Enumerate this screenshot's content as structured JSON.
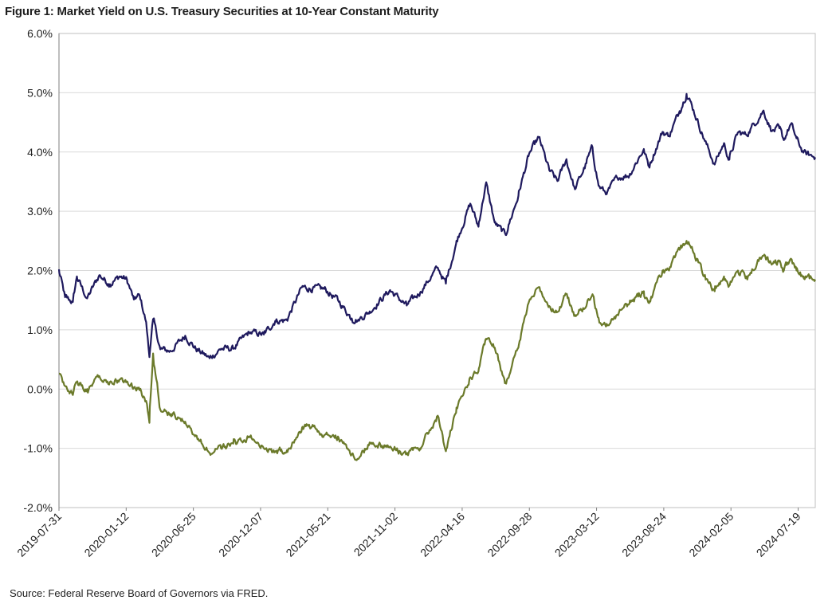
{
  "figure_title": "Figure 1: Market Yield on U.S. Treasury Securities at 10-Year Constant Maturity",
  "source": "Source: Federal Reserve Board of Governors via FRED.",
  "chart_data": {
    "type": "line",
    "title": "Figure 1: Market Yield on U.S. Treasury Securities at 10-Year Constant Maturity",
    "xlabel": "",
    "ylabel": "",
    "ylim": [
      -2.0,
      6.0
    ],
    "xlim": [
      "2019-07-31",
      "2024-08-30"
    ],
    "grid": true,
    "legend": "none",
    "y_ticks": [
      "-2.0%",
      "-1.0%",
      "0.0%",
      "1.0%",
      "2.0%",
      "3.0%",
      "4.0%",
      "5.0%",
      "6.0%"
    ],
    "y_tick_values": [
      -2,
      -1,
      0,
      1,
      2,
      3,
      4,
      5,
      6
    ],
    "x_ticks": [
      "2019-07-31",
      "2020-01-12",
      "2020-06-25",
      "2020-12-07",
      "2021-05-21",
      "2021-11-02",
      "2022-04-16",
      "2022-09-28",
      "2023-03-12",
      "2023-08-24",
      "2024-02-05",
      "2024-07-19"
    ],
    "series": [
      {
        "color": "#1f1a5e",
        "points": [
          [
            "2019-07-31",
            2.02
          ],
          [
            "2019-08-15",
            1.55
          ],
          [
            "2019-09-03",
            1.47
          ],
          [
            "2019-09-13",
            1.9
          ],
          [
            "2019-10-08",
            1.53
          ],
          [
            "2019-11-07",
            1.92
          ],
          [
            "2019-12-03",
            1.77
          ],
          [
            "2019-12-27",
            1.9
          ],
          [
            "2020-01-14",
            1.85
          ],
          [
            "2020-01-31",
            1.51
          ],
          [
            "2020-02-14",
            1.58
          ],
          [
            "2020-03-01",
            1.13
          ],
          [
            "2020-03-09",
            0.54
          ],
          [
            "2020-03-18",
            1.18
          ],
          [
            "2020-04-05",
            0.67
          ],
          [
            "2020-05-01",
            0.64
          ],
          [
            "2020-06-05",
            0.9
          ],
          [
            "2020-07-01",
            0.68
          ],
          [
            "2020-08-04",
            0.52
          ],
          [
            "2020-09-01",
            0.68
          ],
          [
            "2020-10-01",
            0.68
          ],
          [
            "2020-11-09",
            0.96
          ],
          [
            "2020-12-15",
            0.92
          ],
          [
            "2021-01-12",
            1.15
          ],
          [
            "2021-02-10",
            1.16
          ],
          [
            "2021-03-19",
            1.72
          ],
          [
            "2021-04-05",
            1.7
          ],
          [
            "2021-05-12",
            1.69
          ],
          [
            "2021-06-15",
            1.5
          ],
          [
            "2021-07-19",
            1.19
          ],
          [
            "2021-08-04",
            1.17
          ],
          [
            "2021-09-01",
            1.31
          ],
          [
            "2021-10-21",
            1.67
          ],
          [
            "2021-12-01",
            1.41
          ],
          [
            "2022-01-03",
            1.63
          ],
          [
            "2022-02-15",
            2.05
          ],
          [
            "2022-03-07",
            1.78
          ],
          [
            "2022-04-01",
            2.45
          ],
          [
            "2022-05-06",
            3.13
          ],
          [
            "2022-05-26",
            2.74
          ],
          [
            "2022-06-14",
            3.49
          ],
          [
            "2022-07-05",
            2.81
          ],
          [
            "2022-08-01",
            2.6
          ],
          [
            "2022-09-01",
            3.26
          ],
          [
            "2022-09-26",
            3.93
          ],
          [
            "2022-10-21",
            4.25
          ],
          [
            "2022-11-16",
            3.69
          ],
          [
            "2022-12-06",
            3.51
          ],
          [
            "2022-12-28",
            3.88
          ],
          [
            "2023-01-18",
            3.37
          ],
          [
            "2023-02-15",
            3.81
          ],
          [
            "2023-03-02",
            4.08
          ],
          [
            "2023-03-17",
            3.43
          ],
          [
            "2023-04-06",
            3.29
          ],
          [
            "2023-05-01",
            3.57
          ],
          [
            "2023-06-01",
            3.61
          ],
          [
            "2023-07-06",
            4.05
          ],
          [
            "2023-07-19",
            3.75
          ],
          [
            "2023-08-21",
            4.34
          ],
          [
            "2023-09-06",
            4.27
          ],
          [
            "2023-10-02",
            4.69
          ],
          [
            "2023-10-19",
            4.98
          ],
          [
            "2023-11-01",
            4.79
          ],
          [
            "2023-12-01",
            4.22
          ],
          [
            "2023-12-27",
            3.79
          ],
          [
            "2024-01-19",
            4.15
          ],
          [
            "2024-02-01",
            3.87
          ],
          [
            "2024-02-22",
            4.33
          ],
          [
            "2024-03-14",
            4.29
          ],
          [
            "2024-04-25",
            4.7
          ],
          [
            "2024-05-15",
            4.35
          ],
          [
            "2024-06-03",
            4.4
          ],
          [
            "2024-06-14",
            4.2
          ],
          [
            "2024-07-01",
            4.47
          ],
          [
            "2024-07-15",
            4.23
          ],
          [
            "2024-08-01",
            3.99
          ],
          [
            "2024-08-30",
            3.91
          ]
        ]
      },
      {
        "color": "#6b7a2a",
        "points": [
          [
            "2019-07-31",
            0.26
          ],
          [
            "2019-08-15",
            0.05
          ],
          [
            "2019-09-03",
            -0.1
          ],
          [
            "2019-09-13",
            0.12
          ],
          [
            "2019-10-08",
            0.0
          ],
          [
            "2019-11-07",
            0.22
          ],
          [
            "2019-12-03",
            0.12
          ],
          [
            "2019-12-27",
            0.16
          ],
          [
            "2020-01-14",
            0.13
          ],
          [
            "2020-01-31",
            0.03
          ],
          [
            "2020-02-14",
            -0.02
          ],
          [
            "2020-03-01",
            -0.2
          ],
          [
            "2020-03-09",
            -0.57
          ],
          [
            "2020-03-18",
            0.6
          ],
          [
            "2020-04-05",
            -0.35
          ],
          [
            "2020-05-01",
            -0.42
          ],
          [
            "2020-06-05",
            -0.55
          ],
          [
            "2020-07-01",
            -0.78
          ],
          [
            "2020-08-04",
            -1.08
          ],
          [
            "2020-09-01",
            -1.0
          ],
          [
            "2020-10-01",
            -0.92
          ],
          [
            "2020-11-09",
            -0.8
          ],
          [
            "2020-12-15",
            -1.0
          ],
          [
            "2021-01-12",
            -1.05
          ],
          [
            "2021-02-10",
            -1.03
          ],
          [
            "2021-03-19",
            -0.65
          ],
          [
            "2021-04-05",
            -0.6
          ],
          [
            "2021-05-12",
            -0.78
          ],
          [
            "2021-06-15",
            -0.8
          ],
          [
            "2021-07-19",
            -1.1
          ],
          [
            "2021-08-04",
            -1.18
          ],
          [
            "2021-09-01",
            -0.9
          ],
          [
            "2021-10-21",
            -0.97
          ],
          [
            "2021-12-01",
            -1.1
          ],
          [
            "2022-01-03",
            -1.0
          ],
          [
            "2022-02-15",
            -0.45
          ],
          [
            "2022-03-07",
            -1.05
          ],
          [
            "2022-04-01",
            -0.4
          ],
          [
            "2022-05-06",
            0.2
          ],
          [
            "2022-05-26",
            0.3
          ],
          [
            "2022-06-14",
            0.85
          ],
          [
            "2022-07-05",
            0.7
          ],
          [
            "2022-08-01",
            0.1
          ],
          [
            "2022-09-01",
            0.7
          ],
          [
            "2022-09-26",
            1.45
          ],
          [
            "2022-10-21",
            1.72
          ],
          [
            "2022-11-16",
            1.4
          ],
          [
            "2022-12-06",
            1.3
          ],
          [
            "2022-12-28",
            1.6
          ],
          [
            "2023-01-18",
            1.25
          ],
          [
            "2023-02-15",
            1.4
          ],
          [
            "2023-03-02",
            1.6
          ],
          [
            "2023-03-17",
            1.2
          ],
          [
            "2023-04-06",
            1.1
          ],
          [
            "2023-05-01",
            1.25
          ],
          [
            "2023-06-01",
            1.45
          ],
          [
            "2023-07-06",
            1.65
          ],
          [
            "2023-07-19",
            1.45
          ],
          [
            "2023-08-21",
            2.0
          ],
          [
            "2023-09-06",
            2.0
          ],
          [
            "2023-10-02",
            2.35
          ],
          [
            "2023-10-19",
            2.5
          ],
          [
            "2023-11-01",
            2.4
          ],
          [
            "2023-12-01",
            1.9
          ],
          [
            "2023-12-27",
            1.65
          ],
          [
            "2024-01-19",
            1.9
          ],
          [
            "2024-02-01",
            1.75
          ],
          [
            "2024-02-22",
            2.0
          ],
          [
            "2024-03-14",
            1.9
          ],
          [
            "2024-04-25",
            2.25
          ],
          [
            "2024-05-15",
            2.1
          ],
          [
            "2024-06-03",
            2.15
          ],
          [
            "2024-06-14",
            2.0
          ],
          [
            "2024-07-01",
            2.2
          ],
          [
            "2024-07-15",
            2.0
          ],
          [
            "2024-08-01",
            1.9
          ],
          [
            "2024-08-30",
            1.85
          ]
        ]
      }
    ]
  }
}
